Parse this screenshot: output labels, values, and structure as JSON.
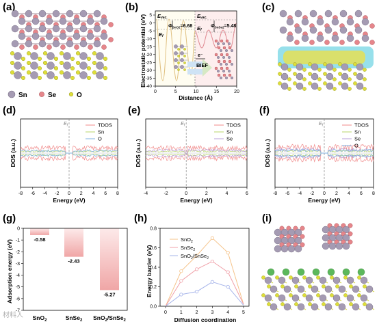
{
  "panels": {
    "a": {
      "label": "(a)",
      "legend": [
        {
          "text": "Sn",
          "color": "#a59bb3"
        },
        {
          "text": "Se",
          "color": "#e6868b"
        },
        {
          "text": "O",
          "color": "#dede3a"
        }
      ]
    },
    "b": {
      "label": "(b)",
      "ylabel": "Electrostatic potential (eV)",
      "xlabel": "Distance (Å)",
      "xticks": [
        "0",
        "5",
        "10",
        "15",
        "20"
      ],
      "yticks": [
        "5",
        "0",
        "-5",
        "-10",
        "-15",
        "-20",
        "-25",
        "-30",
        "-35",
        "-40"
      ],
      "evac_left": "E",
      "evac_left_sub": "vac.",
      "evac_right": "E",
      "evac_right_sub": "vac.",
      "ef_left": "E",
      "ef_left_sub": "f",
      "ef_right": "E",
      "ef_right_sub": "f",
      "phi_left": "Φ",
      "phi_left_sub": "SnO2",
      "phi_left_val": "=6.68",
      "phi_right": "Φ",
      "phi_right_sub": "SnSe2",
      "phi_right_val": "=5.48",
      "electron": "e⁻",
      "bief": "BIEF"
    },
    "c": {
      "label": "(c)"
    },
    "g": {
      "label": "(g)",
      "ylabel": "Adsorption energy (eV)",
      "xlabel_1": "SnO",
      "xlabel_1_sub": "2",
      "xlabel_2": "SnSe",
      "xlabel_2_sub": "2",
      "xlabel_3": "SnO",
      "xlabel_3_sub": "2",
      "xlabel_3b": "/SnSe",
      "xlabel_3b_sub": "2",
      "value_labels": [
        "-0.58",
        "-2.43",
        "-5.27"
      ]
    },
    "h": {
      "label": "(h)",
      "ylabel": "Energy barrier (eV)",
      "xlabel": "Diffusion coordination",
      "legend_1": "SnO",
      "legend_1_sub": "2",
      "legend_2": "SnSe",
      "legend_2_sub": "2",
      "legend_3": "SnO",
      "legend_3_sub": "2",
      "legend_3b": "/SnSe",
      "legend_3b_sub": "2"
    },
    "i": {
      "label": "(i)"
    },
    "d": {
      "label": "(d)",
      "ylabel": "DOS (a.u.)",
      "xlabel": "Energy (eV)",
      "ef": "E",
      "ef_sub": "f"
    },
    "e": {
      "label": "(e)",
      "ylabel": "DOS (a.u.)",
      "xlabel": "Energy (eV)",
      "ef": "E",
      "ef_sub": "f"
    },
    "f": {
      "label": "(f)",
      "ylabel": "DOS (a.u.)",
      "xlabel": "Energy (eV)",
      "ef": "E",
      "ef_sub": "f"
    }
  },
  "watermark": "材料人",
  "colors": {
    "tdos": "#f08a8a",
    "sn": "#b8d66a",
    "se": "#b9a0d8",
    "o": "#7fb0e0",
    "bar": "#f2b3b3",
    "h_sno2": "#f5c38a",
    "h_snse2": "#f0a0a8",
    "h_het": "#a6b4ea"
  },
  "chart_data": [
    {
      "type": "bar",
      "panel": "g",
      "categories": [
        "SnO2",
        "SnSe2",
        "SnO2/SnSe2"
      ],
      "values": [
        -0.58,
        -2.43,
        -5.27
      ],
      "ylabel": "Adsorption energy (eV)",
      "ylim": [
        -7,
        0
      ],
      "yticks": [
        0,
        -1,
        -2,
        -3,
        -4,
        -5,
        -6,
        -7
      ]
    },
    {
      "type": "line",
      "panel": "h",
      "x": [
        0,
        1,
        2,
        3,
        4,
        5
      ],
      "xlabel": "Diffusion coordination",
      "ylabel": "Energy barrier (eV)",
      "ylim": [
        0,
        0.8
      ],
      "yticks": [
        0.0,
        0.2,
        0.4,
        0.6,
        0.8
      ],
      "xticks": [
        0,
        1,
        2,
        3,
        4,
        5
      ],
      "series": [
        {
          "name": "SnO2",
          "values": [
            0.0,
            0.36,
            0.52,
            0.7,
            0.55,
            0.02
          ]
        },
        {
          "name": "SnSe2",
          "values": [
            0.0,
            0.26,
            0.38,
            0.46,
            0.35,
            0.02
          ]
        },
        {
          "name": "SnO2/SnSe2",
          "values": [
            0.0,
            0.12,
            0.15,
            0.25,
            0.2,
            0.01
          ]
        }
      ]
    },
    {
      "type": "line",
      "panel": "d",
      "xlabel": "Energy (eV)",
      "ylabel": "DOS (a.u.)",
      "xlim": [
        -8,
        8
      ],
      "xticks": [
        -8,
        -6,
        -4,
        -2,
        0,
        2,
        4,
        6,
        8
      ],
      "legend": [
        "TDOS",
        "Sn",
        "O"
      ]
    },
    {
      "type": "line",
      "panel": "e",
      "xlabel": "Energy (eV)",
      "ylabel": "DOS (a.u.)",
      "xlim": [
        -4,
        6
      ],
      "xticks": [
        -4,
        -2,
        0,
        2,
        4,
        6
      ],
      "legend": [
        "TDOS",
        "Sn",
        "Se"
      ]
    },
    {
      "type": "line",
      "panel": "f",
      "xlabel": "Energy (eV)",
      "ylabel": "DOS (a.u.)",
      "xlim": [
        -8,
        8
      ],
      "xticks": [
        -8,
        -6,
        -4,
        -2,
        0,
        2,
        4,
        6,
        8
      ],
      "legend": [
        "TDOS",
        "Sn",
        "Se",
        "O"
      ]
    }
  ]
}
